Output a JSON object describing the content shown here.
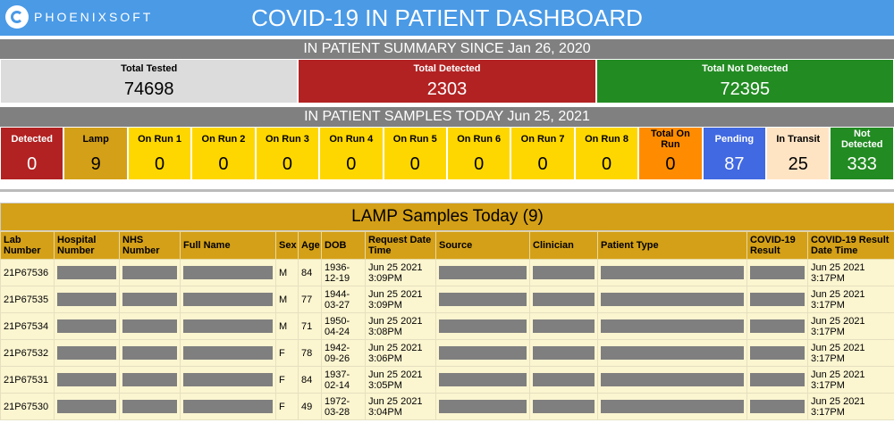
{
  "header": {
    "brand": "PHOENIXSOFT",
    "title": "COVID-19 IN PATIENT DASHBOARD"
  },
  "summary": {
    "title": "IN PATIENT SUMMARY SINCE Jan 26, 2020",
    "items": [
      {
        "label": "Total Tested",
        "value": 74698,
        "color": "#dcdcdc"
      },
      {
        "label": "Total Detected",
        "value": 2303,
        "color": "#b22222"
      },
      {
        "label": "Total Not Detected",
        "value": 72395,
        "color": "#228b22"
      }
    ]
  },
  "samples_today": {
    "title": "IN PATIENT SAMPLES TODAY Jun 25, 2021",
    "items": [
      {
        "label": "Detected",
        "value": 0,
        "color": "#b22222"
      },
      {
        "label": "Lamp",
        "value": 9,
        "color": "#d4a017"
      },
      {
        "label": "On Run 1",
        "value": 0,
        "color": "#ffd700"
      },
      {
        "label": "On Run 2",
        "value": 0,
        "color": "#ffd700"
      },
      {
        "label": "On Run 3",
        "value": 0,
        "color": "#ffd700"
      },
      {
        "label": "On Run 4",
        "value": 0,
        "color": "#ffd700"
      },
      {
        "label": "On Run 5",
        "value": 0,
        "color": "#ffd700"
      },
      {
        "label": "On Run 6",
        "value": 0,
        "color": "#ffd700"
      },
      {
        "label": "On Run 7",
        "value": 0,
        "color": "#ffd700"
      },
      {
        "label": "On Run 8",
        "value": 0,
        "color": "#ffd700"
      },
      {
        "label": "Total On Run",
        "value": 0,
        "color": "#ff8c00"
      },
      {
        "label": "Pending",
        "value": 87,
        "color": "#4169e1"
      },
      {
        "label": "In Transit",
        "value": 25,
        "color": "#ffe4c4"
      },
      {
        "label": "Not Detected",
        "value": 333,
        "color": "#228b22"
      }
    ]
  },
  "table": {
    "title": "LAMP Samples Today (9)",
    "columns": [
      "Lab Number",
      "Hospital Number",
      "NHS Number",
      "Full Name",
      "Sex",
      "Age",
      "DOB",
      "Request Date Time",
      "Source",
      "Clinician",
      "Patient Type",
      "COVID-19 Result",
      "COVID-19 Result Date Time"
    ],
    "rows": [
      {
        "lab_number": "21P67536",
        "sex": "M",
        "age": 84,
        "dob": "1936-12-19",
        "request_date_time": "Jun 25 2021 3:09PM",
        "result_date_time": "Jun 25 2021 3:17PM"
      },
      {
        "lab_number": "21P67535",
        "sex": "M",
        "age": 77,
        "dob": "1944-03-27",
        "request_date_time": "Jun 25 2021 3:09PM",
        "result_date_time": "Jun 25 2021 3:17PM"
      },
      {
        "lab_number": "21P67534",
        "sex": "M",
        "age": 71,
        "dob": "1950-04-24",
        "request_date_time": "Jun 25 2021 3:08PM",
        "result_date_time": "Jun 25 2021 3:17PM"
      },
      {
        "lab_number": "21P67532",
        "sex": "F",
        "age": 78,
        "dob": "1942-09-26",
        "request_date_time": "Jun 25 2021 3:06PM",
        "result_date_time": "Jun 25 2021 3:17PM"
      },
      {
        "lab_number": "21P67531",
        "sex": "F",
        "age": 84,
        "dob": "1937-02-14",
        "request_date_time": "Jun 25 2021 3:05PM",
        "result_date_time": "Jun 25 2021 3:17PM"
      },
      {
        "lab_number": "21P67530",
        "sex": "F",
        "age": 49,
        "dob": "1972-03-28",
        "request_date_time": "Jun 25 2021 3:04PM",
        "result_date_time": "Jun 25 2021 3:17PM"
      }
    ]
  }
}
